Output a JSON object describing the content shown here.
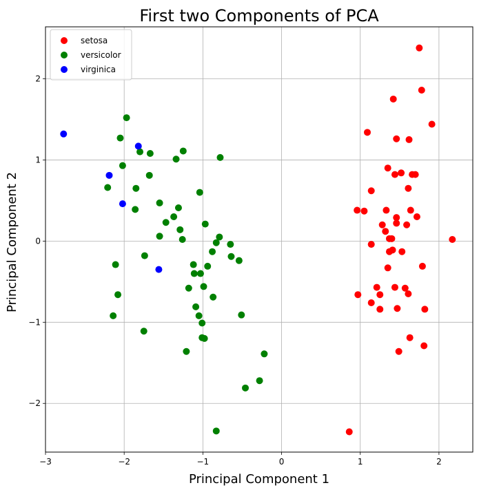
{
  "chart_data": {
    "type": "scatter",
    "title": "First two Components of PCA",
    "xlabel": "Principal Component 1",
    "ylabel": "Principal Component 2",
    "xlim": [
      -3.0,
      2.43
    ],
    "ylim": [
      -2.6,
      2.64
    ],
    "xticks": [
      -3,
      -2,
      -1,
      0,
      1,
      2
    ],
    "yticks": [
      -2,
      -1,
      0,
      1,
      2
    ],
    "grid": true,
    "legend_position": "top-left",
    "series": [
      {
        "name": "setosa",
        "color": "#ff0000",
        "points": [
          [
            1.75,
            2.38
          ],
          [
            1.78,
            1.86
          ],
          [
            1.42,
            1.75
          ],
          [
            1.91,
            1.44
          ],
          [
            1.09,
            1.34
          ],
          [
            1.46,
            1.26
          ],
          [
            1.62,
            1.25
          ],
          [
            1.35,
            0.9
          ],
          [
            1.52,
            0.84
          ],
          [
            1.44,
            0.82
          ],
          [
            1.66,
            0.82
          ],
          [
            1.7,
            0.82
          ],
          [
            1.61,
            0.65
          ],
          [
            1.14,
            0.62
          ],
          [
            0.96,
            0.38
          ],
          [
            1.05,
            0.37
          ],
          [
            1.33,
            0.38
          ],
          [
            1.64,
            0.38
          ],
          [
            1.46,
            0.29
          ],
          [
            1.72,
            0.3
          ],
          [
            1.46,
            0.22
          ],
          [
            1.59,
            0.2
          ],
          [
            1.28,
            0.2
          ],
          [
            1.32,
            0.12
          ],
          [
            1.37,
            0.03
          ],
          [
            1.4,
            0.03
          ],
          [
            2.17,
            0.02
          ],
          [
            1.14,
            -0.04
          ],
          [
            1.41,
            -0.11
          ],
          [
            1.37,
            -0.13
          ],
          [
            1.53,
            -0.13
          ],
          [
            1.35,
            -0.33
          ],
          [
            1.79,
            -0.31
          ],
          [
            1.21,
            -0.57
          ],
          [
            1.44,
            -0.57
          ],
          [
            1.57,
            -0.58
          ],
          [
            0.97,
            -0.66
          ],
          [
            1.25,
            -0.66
          ],
          [
            1.61,
            -0.65
          ],
          [
            1.14,
            -0.76
          ],
          [
            1.25,
            -0.84
          ],
          [
            1.47,
            -0.83
          ],
          [
            1.82,
            -0.84
          ],
          [
            1.63,
            -1.19
          ],
          [
            1.81,
            -1.29
          ],
          [
            1.49,
            -1.36
          ],
          [
            0.86,
            -2.35
          ]
        ]
      },
      {
        "name": "versicolor",
        "color": "#008000",
        "points": [
          [
            -1.97,
            1.52
          ],
          [
            -2.05,
            1.27
          ],
          [
            -1.8,
            1.1
          ],
          [
            -1.67,
            1.08
          ],
          [
            -1.25,
            1.11
          ],
          [
            -0.78,
            1.03
          ],
          [
            -1.34,
            1.01
          ],
          [
            -2.02,
            0.93
          ],
          [
            -1.68,
            0.81
          ],
          [
            -2.21,
            0.66
          ],
          [
            -1.85,
            0.65
          ],
          [
            -1.04,
            0.6
          ],
          [
            -1.55,
            0.47
          ],
          [
            -1.31,
            0.41
          ],
          [
            -1.86,
            0.39
          ],
          [
            -1.37,
            0.3
          ],
          [
            -1.47,
            0.23
          ],
          [
            -0.97,
            0.21
          ],
          [
            -1.29,
            0.14
          ],
          [
            -1.55,
            0.06
          ],
          [
            -0.79,
            0.05
          ],
          [
            -1.26,
            0.02
          ],
          [
            -0.83,
            -0.02
          ],
          [
            -0.65,
            -0.04
          ],
          [
            -0.88,
            -0.13
          ],
          [
            -0.64,
            -0.19
          ],
          [
            -1.74,
            -0.18
          ],
          [
            -0.54,
            -0.24
          ],
          [
            -2.11,
            -0.29
          ],
          [
            -1.12,
            -0.29
          ],
          [
            -0.94,
            -0.31
          ],
          [
            -1.11,
            -0.4
          ],
          [
            -1.03,
            -0.4
          ],
          [
            -0.99,
            -0.56
          ],
          [
            -1.18,
            -0.58
          ],
          [
            -2.08,
            -0.66
          ],
          [
            -0.87,
            -0.69
          ],
          [
            -1.09,
            -0.81
          ],
          [
            -2.14,
            -0.92
          ],
          [
            -1.05,
            -0.92
          ],
          [
            -0.51,
            -0.91
          ],
          [
            -1.01,
            -1.01
          ],
          [
            -1.75,
            -1.11
          ],
          [
            -1.01,
            -1.19
          ],
          [
            -0.98,
            -1.2
          ],
          [
            -1.21,
            -1.36
          ],
          [
            -0.22,
            -1.39
          ],
          [
            -0.28,
            -1.72
          ],
          [
            -0.46,
            -1.81
          ],
          [
            -0.83,
            -2.34
          ]
        ]
      },
      {
        "name": "virginica",
        "color": "#0000ff",
        "points": [
          [
            -2.77,
            1.32
          ],
          [
            -1.82,
            1.17
          ],
          [
            -2.19,
            0.81
          ],
          [
            -2.02,
            0.46
          ],
          [
            -1.56,
            -0.35
          ]
        ]
      }
    ]
  }
}
